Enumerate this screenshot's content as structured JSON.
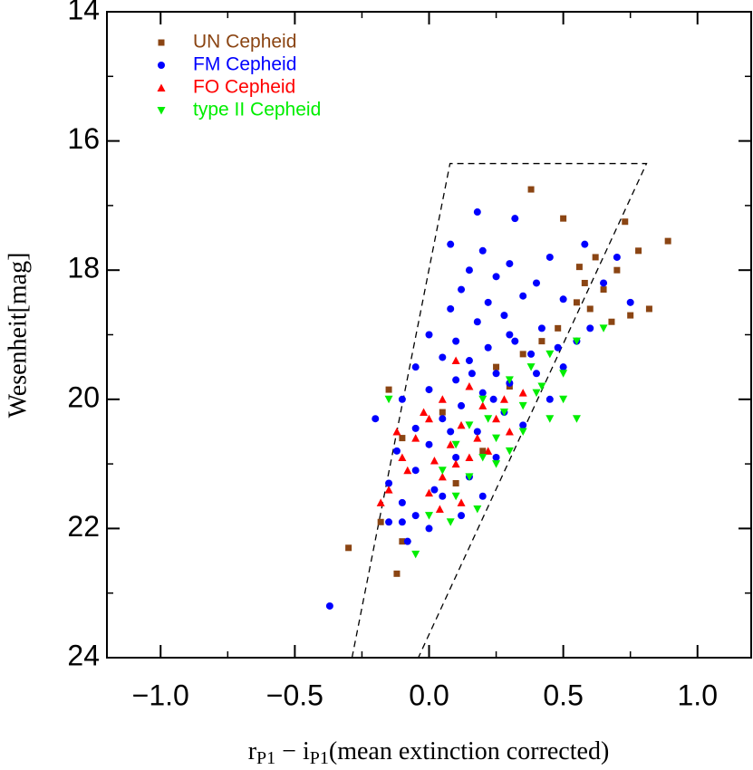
{
  "chart_data": {
    "type": "scatter",
    "xlabel": [
      "r",
      "P1",
      " − i",
      "P1",
      "(mean extinction corrected)"
    ],
    "ylabel": "Wesenheit[mag]",
    "xlim": [
      -1.2,
      1.2
    ],
    "ylim": [
      24,
      14
    ],
    "xticks": [
      {
        "value": -1.0,
        "label": "−1.0"
      },
      {
        "value": -0.5,
        "label": "−0.5"
      },
      {
        "value": 0.0,
        "label": "0.0"
      },
      {
        "value": 0.5,
        "label": "0.5"
      },
      {
        "value": 1.0,
        "label": "1.0"
      }
    ],
    "xminorticks": [
      -1.25,
      -0.75,
      -0.25,
      0.25,
      0.75,
      1.25
    ],
    "yticks": [
      14,
      16,
      18,
      20,
      22,
      24
    ],
    "yminorticks": [
      15,
      17,
      19,
      21,
      23
    ],
    "legend": "upper left",
    "boundary": {
      "x": [
        -0.287,
        0.078,
        0.81,
        -0.04
      ],
      "y": [
        24,
        16.35,
        16.35,
        24
      ]
    },
    "series": [
      {
        "name": "UN Cepheid",
        "color": "#8b4513",
        "marker": "square",
        "x": [
          0.38,
          0.5,
          0.73,
          0.89,
          0.78,
          0.62,
          0.56,
          0.7,
          0.65,
          0.55,
          0.6,
          0.75,
          0.68,
          0.48,
          0.42,
          0.35,
          0.25,
          0.3,
          -0.15,
          0.05,
          -0.1,
          0.2,
          -0.18,
          -0.3,
          -0.12,
          -0.1,
          0.1,
          0.58,
          0.82
        ],
        "values": [
          16.75,
          17.2,
          17.25,
          17.55,
          17.7,
          17.8,
          17.95,
          18.0,
          18.3,
          18.5,
          18.6,
          18.7,
          18.8,
          18.9,
          19.1,
          19.3,
          19.5,
          19.8,
          19.85,
          20.2,
          20.6,
          20.8,
          21.9,
          22.3,
          22.7,
          22.2,
          21.3,
          18.2,
          18.6
        ]
      },
      {
        "name": "FM Cepheid",
        "color": "#0000ff",
        "marker": "circle",
        "x": [
          -0.37,
          0.18,
          0.32,
          0.08,
          0.2,
          0.45,
          0.3,
          0.15,
          0.25,
          0.4,
          0.12,
          0.35,
          0.22,
          0.5,
          0.08,
          0.28,
          0.18,
          0.42,
          0.0,
          0.1,
          0.32,
          0.22,
          0.05,
          0.15,
          0.38,
          -0.05,
          0.25,
          0.1,
          0.3,
          0.0,
          0.2,
          0.4,
          -0.1,
          0.12,
          0.28,
          0.05,
          -0.05,
          0.18,
          0.35,
          0.0,
          -0.12,
          0.1,
          0.25,
          -0.05,
          0.15,
          -0.15,
          0.05,
          -0.1,
          0.2,
          -0.05,
          -0.15,
          0.0,
          -0.08,
          0.55,
          0.6,
          0.48,
          0.65,
          0.7,
          0.58,
          0.75,
          0.5,
          0.45,
          -0.2,
          0.02,
          0.3,
          0.16,
          0.08,
          0.24,
          -0.1,
          0.12
        ],
        "values": [
          23.2,
          17.1,
          17.2,
          17.6,
          17.7,
          17.8,
          17.9,
          18.0,
          18.1,
          18.2,
          18.3,
          18.4,
          18.5,
          18.45,
          18.6,
          18.7,
          18.8,
          18.9,
          19.0,
          19.1,
          19.1,
          19.2,
          19.35,
          19.4,
          19.3,
          19.5,
          19.6,
          19.7,
          19.75,
          19.85,
          19.9,
          19.6,
          20.0,
          20.1,
          20.2,
          20.3,
          20.45,
          20.5,
          20.4,
          20.7,
          20.8,
          20.9,
          20.9,
          21.1,
          21.2,
          21.3,
          21.5,
          21.6,
          21.5,
          21.8,
          21.9,
          22.0,
          22.2,
          19.1,
          18.9,
          19.2,
          18.2,
          17.8,
          17.6,
          18.5,
          19.5,
          20.0,
          20.3,
          21.4,
          19.0,
          19.6,
          20.5,
          20.0,
          21.9,
          21.8
        ]
      },
      {
        "name": "FO Cepheid",
        "color": "#ff0000",
        "marker": "triangle-up",
        "x": [
          0.1,
          0.15,
          0.05,
          0.2,
          0.0,
          0.12,
          0.25,
          -0.05,
          0.08,
          0.18,
          -0.1,
          0.02,
          0.15,
          -0.08,
          0.05,
          0.1,
          -0.15,
          0.0,
          -0.18,
          0.12,
          0.3,
          0.22,
          -0.02,
          0.35,
          0.28,
          -0.12,
          0.04
        ],
        "values": [
          19.4,
          19.8,
          20.0,
          20.1,
          20.3,
          20.4,
          20.3,
          20.6,
          20.7,
          20.6,
          20.9,
          20.95,
          20.9,
          21.1,
          21.2,
          21.0,
          21.4,
          21.45,
          21.6,
          21.6,
          20.5,
          20.8,
          20.2,
          19.9,
          20.0,
          20.5,
          21.7
        ]
      },
      {
        "name": "type II Cepheid",
        "color": "#00ee00",
        "marker": "triangle-down",
        "x": [
          0.65,
          0.55,
          0.45,
          0.38,
          0.5,
          0.3,
          0.4,
          0.2,
          0.28,
          0.45,
          0.15,
          0.35,
          0.25,
          0.1,
          0.2,
          0.3,
          0.05,
          0.15,
          0.25,
          0.1,
          0.0,
          0.18,
          -0.05,
          0.35,
          0.5,
          -0.15,
          0.42,
          0.22,
          0.55,
          0.08
        ],
        "values": [
          18.9,
          19.1,
          19.3,
          19.5,
          19.6,
          19.7,
          19.9,
          20.0,
          20.2,
          20.3,
          20.4,
          20.5,
          20.6,
          20.7,
          20.9,
          20.8,
          21.1,
          21.2,
          21.0,
          21.5,
          21.8,
          21.7,
          22.4,
          20.1,
          20.0,
          20.0,
          19.8,
          20.3,
          20.3,
          21.9
        ]
      }
    ]
  }
}
